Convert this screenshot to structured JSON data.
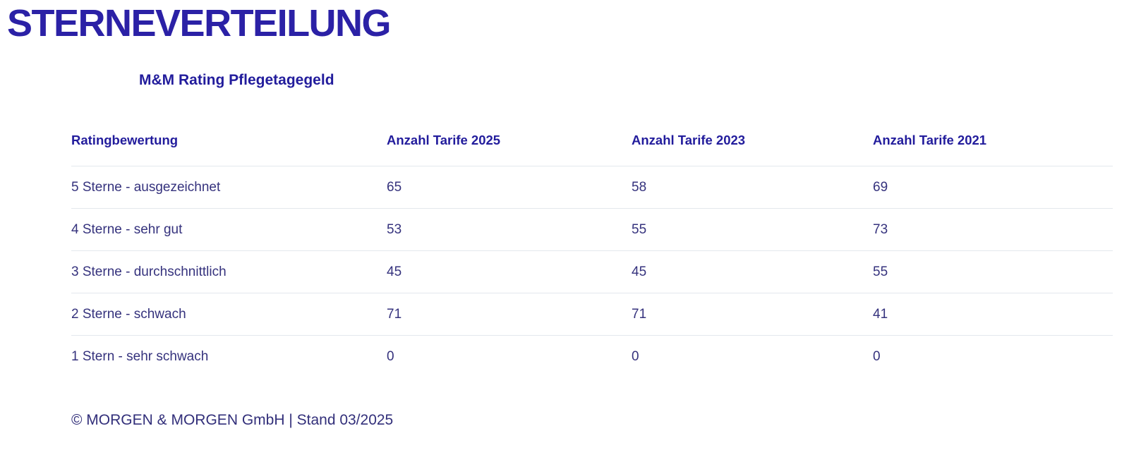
{
  "page": {
    "title": "STERNEVERTEILUNG",
    "subtitle": "M&M Rating Pflegetagegeld",
    "footer": "© MORGEN & MORGEN GmbH | Stand 03/2025"
  },
  "colors": {
    "title": "#2b21a6",
    "heading": "#221c9c",
    "body_text": "#35327d",
    "divider": "#e3e8ed",
    "background": "#ffffff"
  },
  "table": {
    "columns": [
      "Ratingbewertung",
      "Anzahl Tarife 2025",
      "Anzahl Tarife 2023",
      "Anzahl Tarife 2021"
    ],
    "rows": [
      {
        "label": "5 Sterne - ausgezeichnet",
        "values": [
          65,
          58,
          69
        ]
      },
      {
        "label": "4 Sterne - sehr gut",
        "values": [
          53,
          55,
          73
        ]
      },
      {
        "label": "3 Sterne - durchschnittlich",
        "values": [
          45,
          45,
          55
        ]
      },
      {
        "label": "2 Sterne - schwach",
        "values": [
          71,
          71,
          41
        ]
      },
      {
        "label": "1 Stern - sehr schwach",
        "values": [
          0,
          0,
          0
        ]
      }
    ]
  },
  "chart_data": {
    "type": "table",
    "title": "STERNEVERTEILUNG",
    "subtitle": "M&M Rating Pflegetagegeld",
    "categories": [
      "5 Sterne - ausgezeichnet",
      "4 Sterne - sehr gut",
      "3 Sterne - durchschnittlich",
      "2 Sterne - schwach",
      "1 Stern - sehr schwach"
    ],
    "series": [
      {
        "name": "Anzahl Tarife 2025",
        "values": [
          65,
          53,
          45,
          71,
          0
        ]
      },
      {
        "name": "Anzahl Tarife 2023",
        "values": [
          58,
          55,
          45,
          71,
          0
        ]
      },
      {
        "name": "Anzahl Tarife 2021",
        "values": [
          69,
          73,
          55,
          41,
          0
        ]
      }
    ],
    "annotations": [
      "© MORGEN & MORGEN GmbH | Stand 03/2025"
    ]
  }
}
